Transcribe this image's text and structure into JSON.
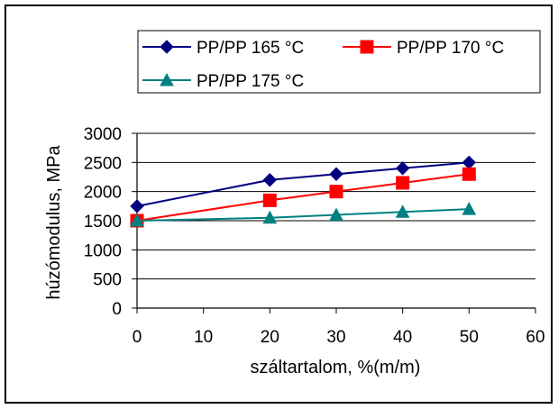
{
  "chart_data": {
    "type": "line",
    "xlabel": "száltartalom, %(m/m)",
    "ylabel": "húzómodulus, MPa",
    "xlim": [
      0,
      60
    ],
    "ylim": [
      0,
      3000
    ],
    "xticks": [
      0,
      10,
      20,
      30,
      40,
      50,
      60
    ],
    "yticks": [
      0,
      500,
      1000,
      1500,
      2000,
      2500,
      3000
    ],
    "grid": "horizontal major gridlines",
    "legend_position": "top, inside chart area",
    "series": [
      {
        "name": "PP/PP 165 °C",
        "color": "#000080",
        "marker": "diamond",
        "points": [
          [
            0,
            1750
          ],
          [
            20,
            2200
          ],
          [
            30,
            2300
          ],
          [
            40,
            2400
          ],
          [
            50,
            2500
          ]
        ]
      },
      {
        "name": "PP/PP 170 °C",
        "color": "#ff0000",
        "marker": "square",
        "points": [
          [
            0,
            1500
          ],
          [
            20,
            1850
          ],
          [
            30,
            2000
          ],
          [
            40,
            2150
          ],
          [
            50,
            2300
          ]
        ]
      },
      {
        "name": "PP/PP 175 °C",
        "color": "#008080",
        "marker": "triangle",
        "points": [
          [
            0,
            1500
          ],
          [
            20,
            1550
          ],
          [
            30,
            1600
          ],
          [
            40,
            1650
          ],
          [
            50,
            1700
          ]
        ]
      }
    ]
  }
}
